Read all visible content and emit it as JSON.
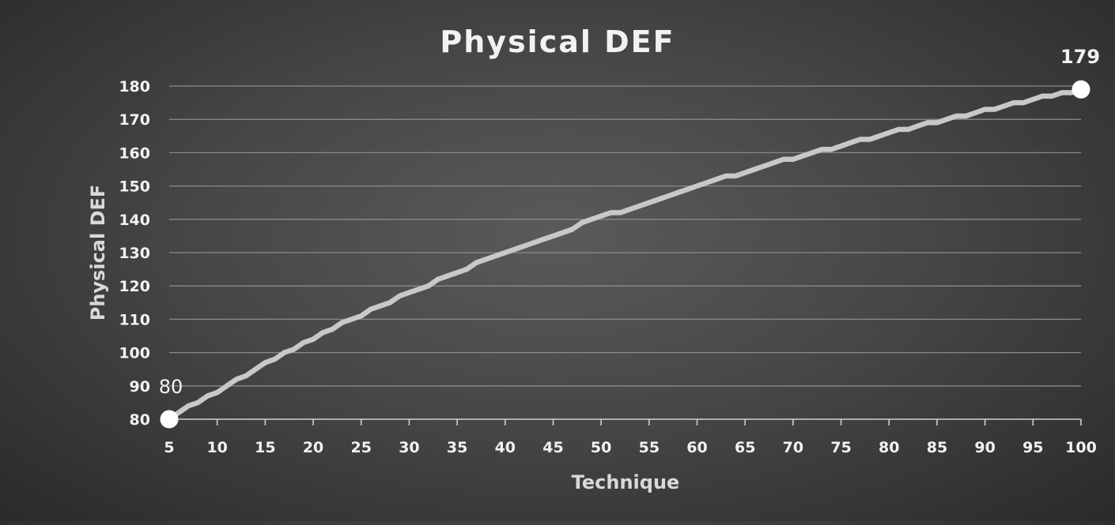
{
  "chart_data": {
    "type": "line",
    "title": "Physical DEF",
    "xlabel": "Technique",
    "ylabel": "Physical DEF",
    "xlim": [
      5,
      100
    ],
    "ylim": [
      80,
      180
    ],
    "x_ticks": [
      5,
      10,
      15,
      20,
      25,
      30,
      35,
      40,
      45,
      50,
      55,
      60,
      65,
      70,
      75,
      80,
      85,
      90,
      95,
      100
    ],
    "y_ticks": [
      80,
      90,
      100,
      110,
      120,
      130,
      140,
      150,
      160,
      170,
      180
    ],
    "grid": true,
    "legend": "none",
    "series_color": "#c8c8c8",
    "marker_color": "#ffffff",
    "series": [
      {
        "x": [
          5,
          6,
          7,
          8,
          9,
          10,
          11,
          12,
          13,
          14,
          15,
          16,
          17,
          18,
          19,
          20,
          21,
          22,
          23,
          24,
          25,
          26,
          27,
          28,
          29,
          30,
          31,
          32,
          33,
          34,
          35,
          36,
          37,
          38,
          39,
          40,
          41,
          42,
          43,
          44,
          45,
          46,
          47,
          48,
          49,
          50,
          51,
          52,
          53,
          54,
          55,
          56,
          57,
          58,
          59,
          60,
          61,
          62,
          63,
          64,
          65,
          66,
          67,
          68,
          69,
          70,
          71,
          72,
          73,
          74,
          75,
          76,
          77,
          78,
          79,
          80,
          81,
          82,
          83,
          84,
          85,
          86,
          87,
          88,
          89,
          90,
          91,
          92,
          93,
          94,
          95,
          96,
          97,
          98,
          99,
          100
        ],
        "y": [
          80,
          82,
          84,
          85,
          87,
          88,
          90,
          92,
          93,
          95,
          97,
          98,
          100,
          101,
          103,
          104,
          106,
          107,
          109,
          110,
          111,
          113,
          114,
          115,
          117,
          118,
          119,
          120,
          122,
          123,
          124,
          125,
          127,
          128,
          129,
          130,
          131,
          132,
          133,
          134,
          135,
          136,
          137,
          139,
          140,
          141,
          142,
          142,
          143,
          144,
          145,
          146,
          147,
          148,
          149,
          150,
          151,
          152,
          153,
          153,
          154,
          155,
          156,
          157,
          158,
          158,
          159,
          160,
          161,
          161,
          162,
          163,
          164,
          164,
          165,
          166,
          167,
          167,
          168,
          169,
          169,
          170,
          171,
          171,
          172,
          173,
          173,
          174,
          175,
          175,
          176,
          177,
          177,
          178,
          178,
          179
        ]
      }
    ],
    "annotations": [
      {
        "x": 5,
        "y": 80,
        "text": "80"
      },
      {
        "x": 100,
        "y": 179,
        "text": "179"
      }
    ]
  }
}
